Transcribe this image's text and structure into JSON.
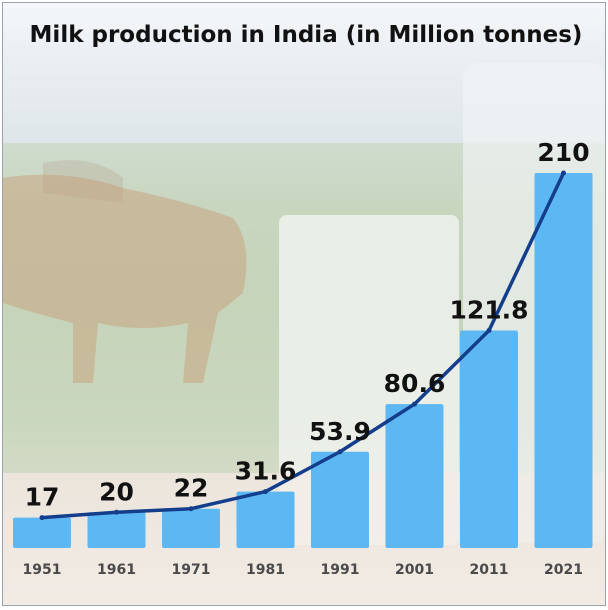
{
  "chart_data": {
    "type": "bar",
    "title": "Milk production in India (in Million tonnes)",
    "xlabel": "",
    "ylabel": "",
    "categories": [
      "1951",
      "1961",
      "1971",
      "1981",
      "1991",
      "2001",
      "2011",
      "2021"
    ],
    "values": [
      17,
      20,
      22,
      31.6,
      53.9,
      80.6,
      121.8,
      210
    ],
    "value_labels": [
      "17",
      "20",
      "22",
      "31.6",
      "53.9",
      "80.6",
      "121.8",
      "210"
    ],
    "overlay_line": true,
    "ylim": [
      0,
      210
    ],
    "grid": false,
    "legend": "none"
  },
  "colors": {
    "bar": "#5cb7f3",
    "line": "#143e8c",
    "text": "#111111",
    "tick": "#4a4a4a"
  }
}
